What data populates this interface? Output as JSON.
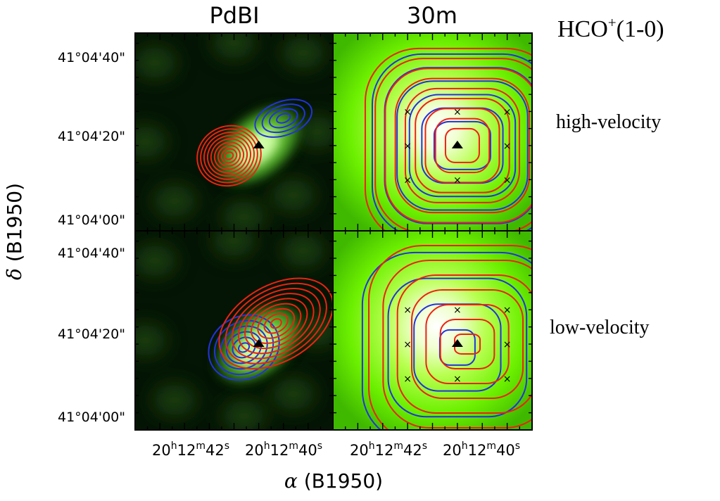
{
  "figure": {
    "col_titles": [
      "PdBI",
      "30m"
    ],
    "molecule_label": {
      "base": "HCO",
      "superscript": "+",
      "tail": "(1-0)"
    },
    "row_labels": [
      "high-velocity",
      "low-velocity"
    ],
    "y_ticks": [
      "41°04'40\"",
      "41°04'20\"",
      "41°04'00\""
    ],
    "x_ticks": [
      {
        "h": "20",
        "m": "12",
        "s": "42",
        "hu": "h",
        "mu": "m",
        "su": "s"
      },
      {
        "h": "20",
        "m": "12",
        "s": "40",
        "hu": "h",
        "mu": "m",
        "su": "s"
      }
    ],
    "ylabel": {
      "symbol": "δ",
      "text": "(B1950)"
    },
    "xlabel": {
      "symbol": "α",
      "text": "(B1950)"
    }
  },
  "colors": {
    "blue_contour": "#2233dd",
    "red_contour": "#ee2211",
    "map_bright": "#ffffff",
    "map_green": "#66ee00",
    "map_dark": "#051505",
    "frame": "#000000"
  },
  "chart_data": [
    {
      "type": "contour",
      "panel": "PdBI high-velocity",
      "x_range": [
        46,
        38
      ],
      "y_range": [
        -4,
        54
      ],
      "y_ticks": [
        0,
        20,
        40
      ],
      "x_ticks": [
        42,
        40
      ],
      "source_pos": [
        41.0,
        21.0
      ],
      "background": "continuum-green",
      "blue_lobe": {
        "center": [
          40.0,
          29.0
        ],
        "levels": 4
      },
      "red_lobe": {
        "center": [
          42.2,
          18.0
        ],
        "levels": 9
      },
      "grid_markers": []
    },
    {
      "type": "contour",
      "panel": "30m high-velocity",
      "x_range": [
        46,
        38
      ],
      "y_range": [
        -4,
        54
      ],
      "y_ticks": [
        0,
        20,
        40
      ],
      "x_ticks": [
        42,
        40
      ],
      "source_pos": [
        41.0,
        21.0
      ],
      "background": "single-dish-green",
      "blue_lobe": {
        "center": [
          40.8,
          21.0
        ],
        "levels": 6
      },
      "red_lobe": {
        "center": [
          40.8,
          21.0
        ],
        "levels": 9
      },
      "grid_markers": [
        [
          43,
          31
        ],
        [
          41,
          31
        ],
        [
          39,
          31
        ],
        [
          43,
          21
        ],
        [
          39,
          21
        ],
        [
          43,
          11
        ],
        [
          41,
          11
        ],
        [
          39,
          11
        ]
      ]
    },
    {
      "type": "contour",
      "panel": "PdBI low-velocity",
      "x_range": [
        46,
        38
      ],
      "y_range": [
        -4,
        54
      ],
      "y_ticks": [
        0,
        20,
        40
      ],
      "x_ticks": [
        42,
        40
      ],
      "source_pos": [
        41.0,
        21.0
      ],
      "background": "continuum-green",
      "blue_lobe": {
        "center": [
          41.6,
          20.0
        ],
        "levels": 6
      },
      "red_lobe": {
        "center": [
          40.3,
          27.0
        ],
        "levels": 9
      },
      "grid_markers": []
    },
    {
      "type": "contour",
      "panel": "30m low-velocity",
      "x_range": [
        46,
        38
      ],
      "y_range": [
        -4,
        54
      ],
      "y_ticks": [
        0,
        20,
        40
      ],
      "x_ticks": [
        42,
        40
      ],
      "source_pos": [
        41.0,
        21.0
      ],
      "background": "single-dish-green",
      "blue_lobe": {
        "center": [
          41.0,
          20.0
        ],
        "levels": 4
      },
      "red_lobe": {
        "center": [
          40.6,
          21.0
        ],
        "levels": 7
      },
      "grid_markers": [
        [
          43,
          31
        ],
        [
          41,
          31
        ],
        [
          39,
          31
        ],
        [
          43,
          21
        ],
        [
          39,
          21
        ],
        [
          43,
          11
        ],
        [
          41,
          11
        ],
        [
          39,
          11
        ]
      ]
    }
  ]
}
